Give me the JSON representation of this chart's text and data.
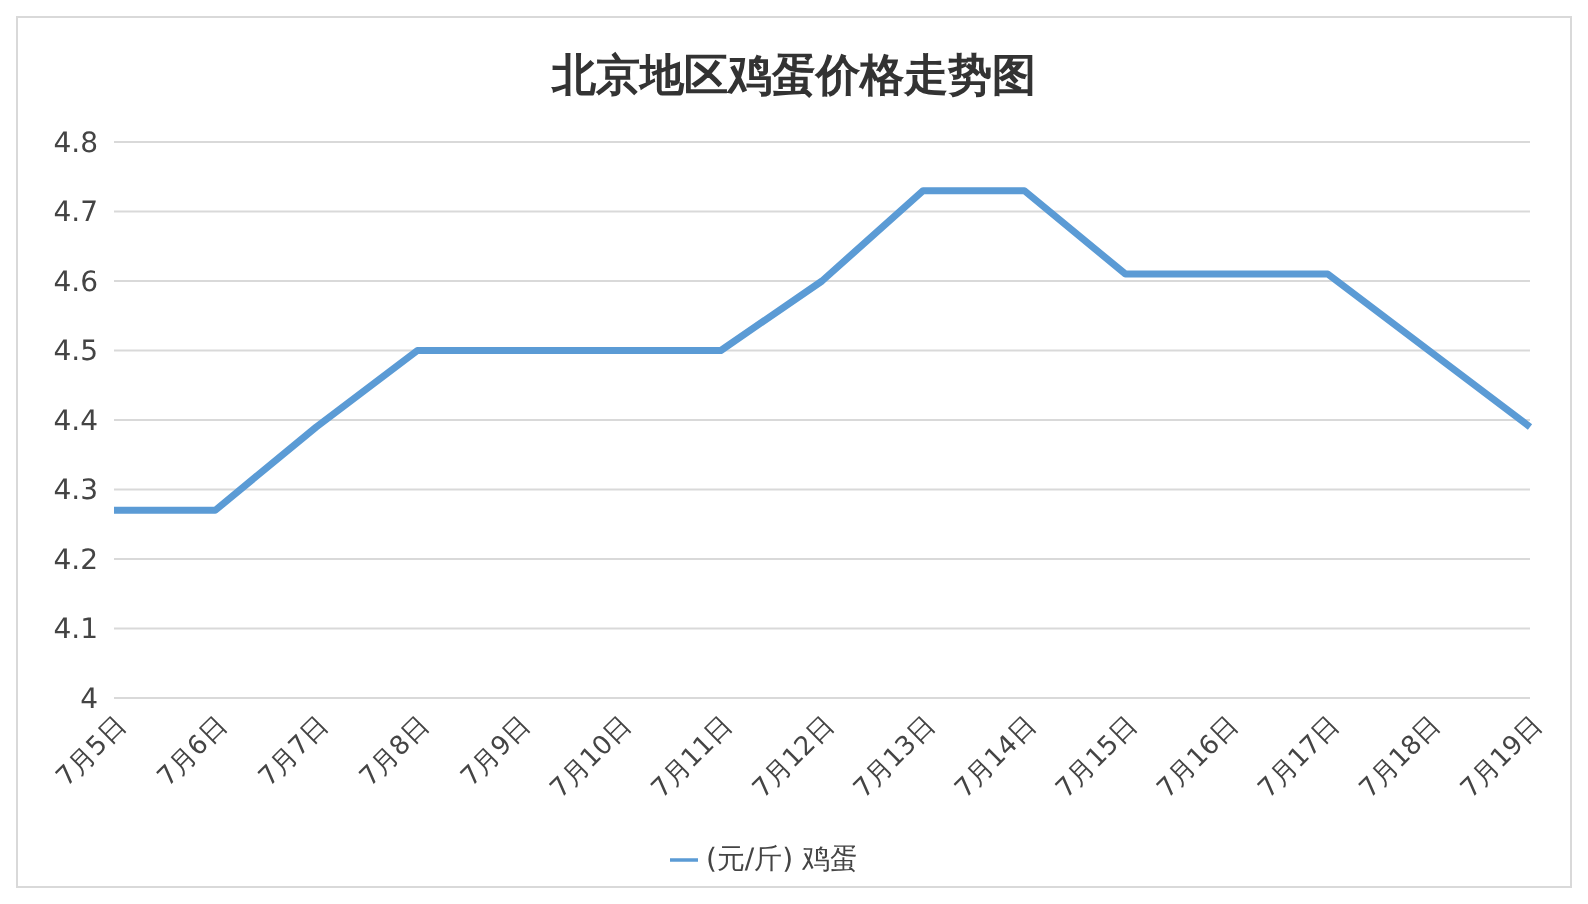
{
  "chart_data": {
    "type": "line",
    "title": "北京地区鸡蛋价格走势图",
    "categories": [
      "7月5日",
      "7月6日",
      "7月7日",
      "7月8日",
      "7月9日",
      "7月10日",
      "7月11日",
      "7月12日",
      "7月13日",
      "7月14日",
      "7月15日",
      "7月16日",
      "7月17日",
      "7月18日",
      "7月19日"
    ],
    "series": [
      {
        "name": "(元/斤) 鸡蛋",
        "color": "#5b9bd5",
        "values": [
          4.27,
          4.27,
          4.39,
          4.5,
          4.5,
          4.5,
          4.5,
          4.6,
          4.73,
          4.73,
          4.61,
          4.61,
          4.61,
          4.5,
          4.39
        ]
      }
    ],
    "ylim": [
      4,
      4.8
    ],
    "yticks": [
      4,
      4.1,
      4.2,
      4.3,
      4.4,
      4.5,
      4.6,
      4.7,
      4.8
    ],
    "grid": "y",
    "legend": "bottom",
    "marker": "none",
    "line_style": "solid"
  }
}
